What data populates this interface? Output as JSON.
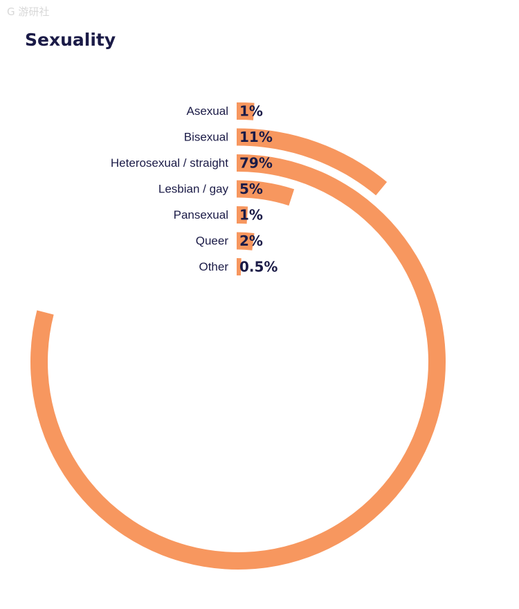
{
  "watermark": "G 游研社",
  "colors": {
    "bar": "#f7975f",
    "text": "#1b1b47",
    "background": "#ffffff"
  },
  "chart_data": {
    "type": "radial-bar",
    "title": "Sexuality",
    "categories": [
      "Asexual",
      "Bisexual",
      "Heterosexual / straight",
      "Lesbian / gay",
      "Pansexual",
      "Queer",
      "Other"
    ],
    "values": [
      1,
      11,
      79,
      5,
      1,
      2,
      0.5
    ],
    "value_labels": [
      "1%",
      "11%",
      "79%",
      "5%",
      "1%",
      "2%",
      "0.5%"
    ],
    "unit": "%",
    "max": 100
  }
}
